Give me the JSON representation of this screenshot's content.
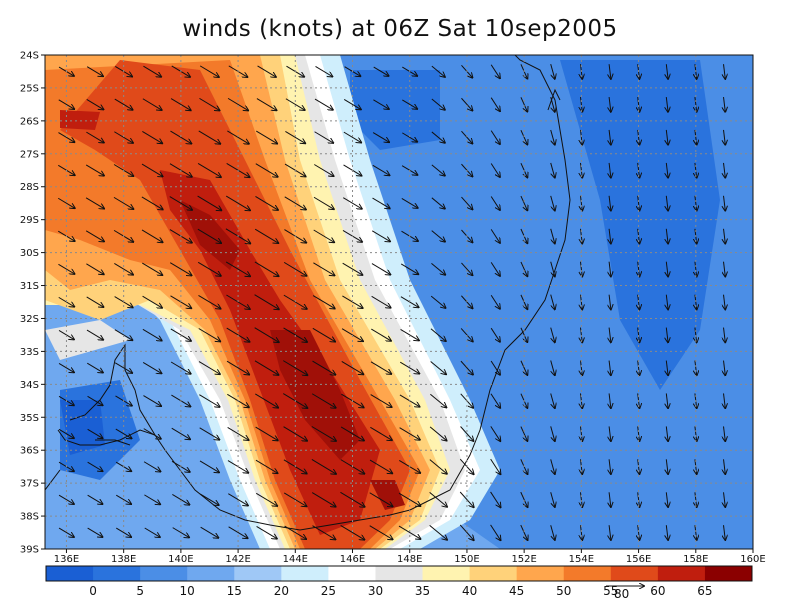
{
  "title": "winds (knots) at 06Z Sat 10sep2005",
  "map": {
    "lat_labels": [
      "24S",
      "25S",
      "26S",
      "27S",
      "28S",
      "29S",
      "30S",
      "31S",
      "32S",
      "33S",
      "34S",
      "35S",
      "36S",
      "37S",
      "38S",
      "39S"
    ],
    "lon_labels": [
      "136E",
      "138E",
      "140E",
      "142E",
      "144E",
      "146E",
      "148E",
      "150E",
      "152E",
      "154E",
      "156E",
      "158E",
      "160E"
    ],
    "lat_range": [
      -24,
      -39
    ],
    "lon_range": [
      135.25,
      160
    ],
    "grid": "dashed"
  },
  "colorbar": {
    "labels": [
      "0",
      "5",
      "10",
      "15",
      "20",
      "25",
      "30",
      "35",
      "40",
      "45",
      "50",
      "55",
      "60",
      "65"
    ],
    "colors": [
      "#1a5fd4",
      "#2a73dd",
      "#4b8ee6",
      "#6fa8ef",
      "#9fc8f6",
      "#cfeefc",
      "#ffffff",
      "#e6e6e6",
      "#fff3b0",
      "#ffd27a",
      "#ffa64d",
      "#f37a2a",
      "#e04a1a",
      "#c01e0e",
      "#8b0000"
    ]
  },
  "reference_vector": {
    "label": "80",
    "units": "knots"
  },
  "wind_field": {
    "description_units": "knots",
    "jet_core_axis": [
      [
        141.5,
        -28.5
      ],
      [
        143.5,
        -33
      ],
      [
        145,
        -36
      ],
      [
        146,
        -38
      ]
    ],
    "jet_core_max": 65
  }
}
